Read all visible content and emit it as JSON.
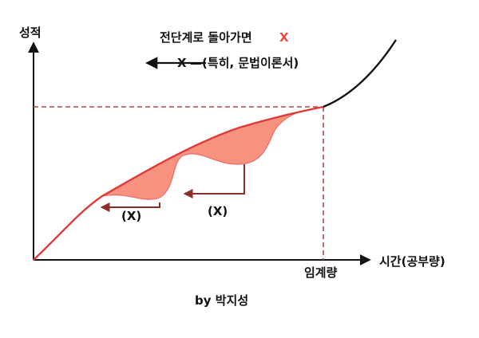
{
  "axes": {
    "y_label": "성적",
    "x_label": "시간(공부량)",
    "threshold_label": "임계량"
  },
  "annotations": {
    "top_line_text": "전단계로 돌아가면",
    "top_line_mark": "X",
    "arrow_mark": "X",
    "arrow_text": "—(특히, 문법이론서)",
    "dip_left_label": "(X)",
    "dip_right_label": "(X)"
  },
  "credit": "by 박지성",
  "colors": {
    "curve": "#e0393a",
    "dip_fill": "#f6927f",
    "dashed": "#b04a45",
    "return_arrow": "#8a2f2a",
    "axis": "#111111",
    "mark": "#e8493a"
  }
}
